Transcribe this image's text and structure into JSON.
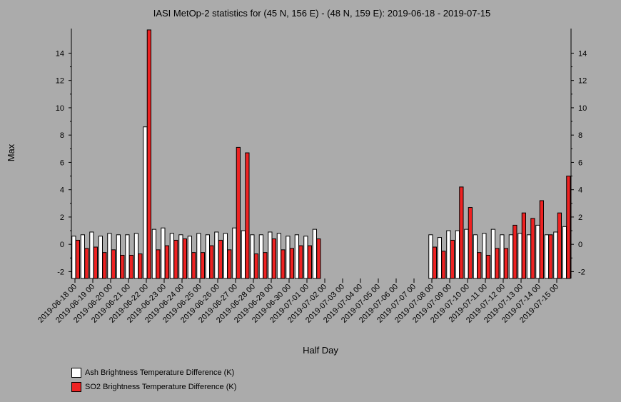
{
  "chart_data": {
    "type": "bar",
    "title": "IASI MetOp-2 statistics for (45 N, 156 E) - (48 N, 159 E): 2019-06-18 - 2019-07-15",
    "xlabel": "Half Day",
    "ylabel": "Max",
    "ylim": [
      -2.5,
      15.8
    ],
    "yticks": [
      -2,
      0,
      2,
      4,
      6,
      8,
      10,
      12,
      14
    ],
    "x_tick_labels": [
      "2019-06-18 00",
      "2019-06-19 00",
      "2019-06-20 00",
      "2019-06-21 00",
      "2019-06-22 00",
      "2019-06-23 00",
      "2019-06-24 00",
      "2019-06-25 00",
      "2019-06-26 00",
      "2019-06-27 00",
      "2019-06-28 00",
      "2019-06-29 00",
      "2019-06-30 00",
      "2019-07-01 00",
      "2019-07-02 00",
      "2019-07-03 00",
      "2019-07-04 00",
      "2019-07-05 00",
      "2019-07-06 00",
      "2019-07-07 00",
      "2019-07-08 00",
      "2019-07-09 00",
      "2019-07-10 00",
      "2019-07-11 00",
      "2019-07-12 00",
      "2019-07-13 00",
      "2019-07-14 00",
      "2019-07-15 00"
    ],
    "series": [
      {
        "name": "Ash Brightness Temperature Difference (K)",
        "color": "#ffffff",
        "values": [
          0.6,
          0.7,
          0.9,
          0.6,
          0.8,
          0.7,
          0.7,
          0.8,
          8.6,
          1.1,
          1.2,
          0.8,
          0.7,
          0.6,
          0.8,
          0.7,
          0.9,
          0.8,
          1.2,
          1.0,
          0.7,
          0.7,
          0.9,
          0.8,
          0.6,
          0.7,
          0.6,
          1.1,
          null,
          null,
          null,
          null,
          null,
          null,
          null,
          null,
          null,
          null,
          null,
          null,
          0.7,
          0.5,
          1.0,
          1.0,
          1.1,
          0.7,
          0.8,
          1.1,
          0.7,
          0.7,
          0.8,
          0.7,
          1.4,
          0.7,
          0.9,
          1.3
        ]
      },
      {
        "name": "SO2 Brightness Temperature Difference (K)",
        "color": "#ee2222",
        "values": [
          0.3,
          -0.3,
          -0.2,
          -0.6,
          -0.4,
          -0.8,
          -0.8,
          -0.7,
          15.7,
          -0.4,
          -0.1,
          0.3,
          0.4,
          -0.6,
          -0.6,
          -0.1,
          0.3,
          -0.4,
          7.1,
          6.7,
          -0.7,
          -0.6,
          0.4,
          -0.4,
          -0.3,
          -0.1,
          -0.1,
          0.4,
          null,
          null,
          null,
          null,
          null,
          null,
          null,
          null,
          null,
          null,
          null,
          null,
          -0.2,
          -0.5,
          0.3,
          4.2,
          2.7,
          -0.6,
          -0.8,
          -0.3,
          -0.3,
          1.4,
          2.3,
          1.9,
          3.2,
          0.7,
          2.3,
          5.0
        ]
      }
    ],
    "legend_placement": "bottom-left"
  }
}
